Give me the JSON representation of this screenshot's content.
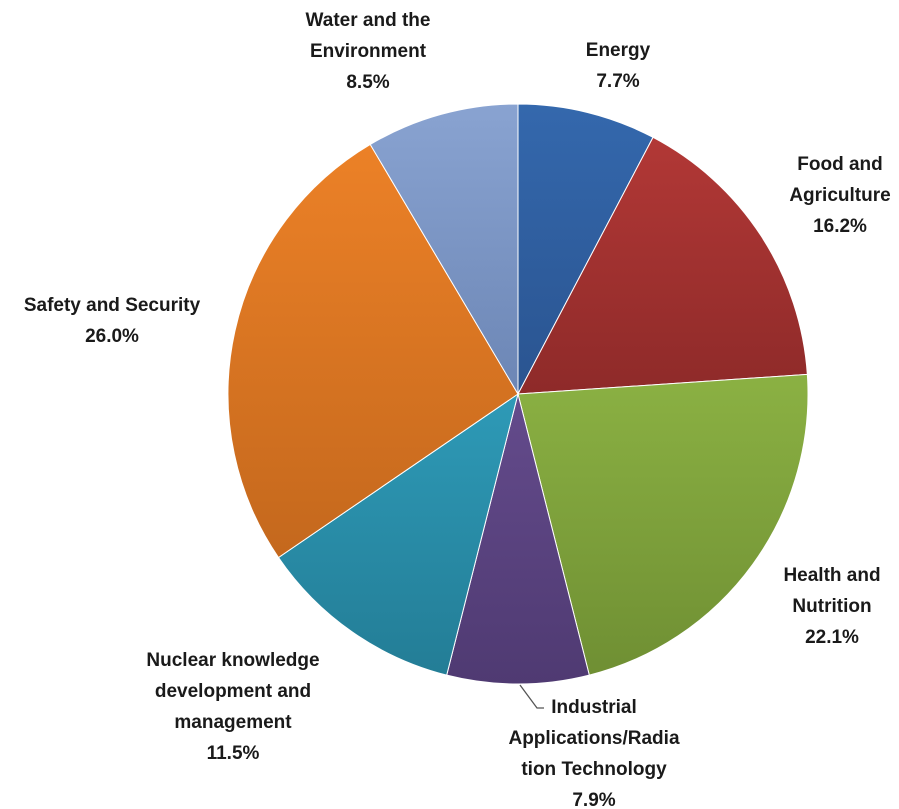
{
  "chart_data": {
    "type": "pie",
    "title": "",
    "start_angle_deg": 0,
    "direction": "clockwise",
    "slices": [
      {
        "label": "Energy",
        "value": 7.7,
        "value_text": "7.7%",
        "color": "#3468ad",
        "color_dark": "#2a5490"
      },
      {
        "label": "Food and Agriculture",
        "value": 16.2,
        "value_text": "16.2%",
        "color": "#b23836",
        "color_dark": "#8e2a29"
      },
      {
        "label": "Health and Nutrition",
        "value": 22.1,
        "value_text": "22.1%",
        "color": "#8bb143",
        "color_dark": "#6f8f33"
      },
      {
        "label": "Industrial Applications/Radiation Technology",
        "value": 7.9,
        "value_text": "7.9%",
        "color": "#644b8c",
        "color_dark": "#4f3a72"
      },
      {
        "label": "Nuclear knowledge development and management",
        "value": 11.5,
        "value_text": "11.5%",
        "color": "#2e9ab7",
        "color_dark": "#237d96"
      },
      {
        "label": "Safety and Security",
        "value": 26.0,
        "value_text": "26.0%",
        "color": "#ec8127",
        "color_dark": "#c4681d"
      },
      {
        "label": "Water and the Environment",
        "value": 8.5,
        "value_text": "8.5%",
        "color": "#89a3d1",
        "color_dark": "#6c86b5"
      }
    ]
  },
  "labels": [
    {
      "lines": [
        "Energy"
      ],
      "value": "7.7%"
    },
    {
      "lines": [
        "Food and",
        "Agriculture"
      ],
      "value": "16.2%"
    },
    {
      "lines": [
        "Health and",
        "Nutrition"
      ],
      "value": "22.1%"
    },
    {
      "lines": [
        "Industrial",
        "Applications/Radia",
        "tion Technology"
      ],
      "value": "7.9%"
    },
    {
      "lines": [
        "Nuclear knowledge",
        "development and",
        "management"
      ],
      "value": "11.5%"
    },
    {
      "lines": [
        "Safety and Security"
      ],
      "value": "26.0%"
    },
    {
      "lines": [
        "Water and the",
        "Environment"
      ],
      "value": "8.5%"
    }
  ]
}
